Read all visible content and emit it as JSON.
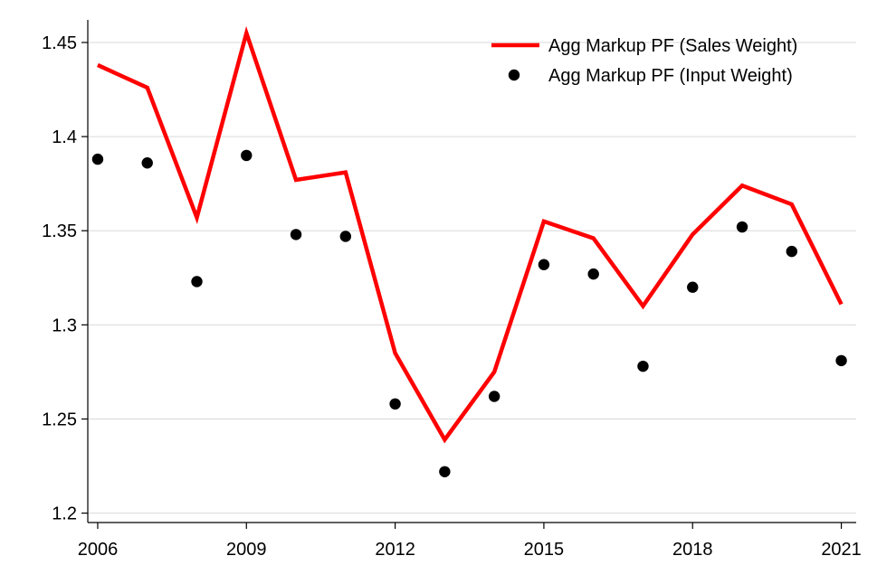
{
  "chart_data": {
    "type": "line",
    "title": "",
    "xlabel": "",
    "ylabel": "",
    "x": [
      2006,
      2007,
      2008,
      2009,
      2010,
      2011,
      2012,
      2013,
      2014,
      2015,
      2016,
      2017,
      2018,
      2019,
      2020,
      2021
    ],
    "x_ticks": [
      2006,
      2009,
      2012,
      2015,
      2018,
      2021
    ],
    "y_ticks": [
      1.2,
      1.25,
      1.3,
      1.35,
      1.4,
      1.45
    ],
    "y_tick_labels": [
      "1.2",
      "1.25",
      "1.3",
      "1.35",
      "1.4",
      "1.45"
    ],
    "xlim": [
      2005.8,
      2021.3
    ],
    "ylim": [
      1.195,
      1.462
    ],
    "grid": true,
    "legend_position": "top-right",
    "series": [
      {
        "name": "Agg Markup PF (Sales Weight)",
        "style": "line",
        "color": "#ff0000",
        "values": [
          1.438,
          1.426,
          1.357,
          1.455,
          1.377,
          1.381,
          1.285,
          1.239,
          1.275,
          1.355,
          1.346,
          1.31,
          1.348,
          1.374,
          1.364,
          1.311
        ]
      },
      {
        "name": "Agg Markup PF (Input Weight)",
        "style": "scatter",
        "color": "#000000",
        "values": [
          1.388,
          1.386,
          1.323,
          1.39,
          1.348,
          1.347,
          1.258,
          1.222,
          1.262,
          1.332,
          1.327,
          1.278,
          1.32,
          1.352,
          1.339,
          1.281
        ]
      }
    ]
  }
}
